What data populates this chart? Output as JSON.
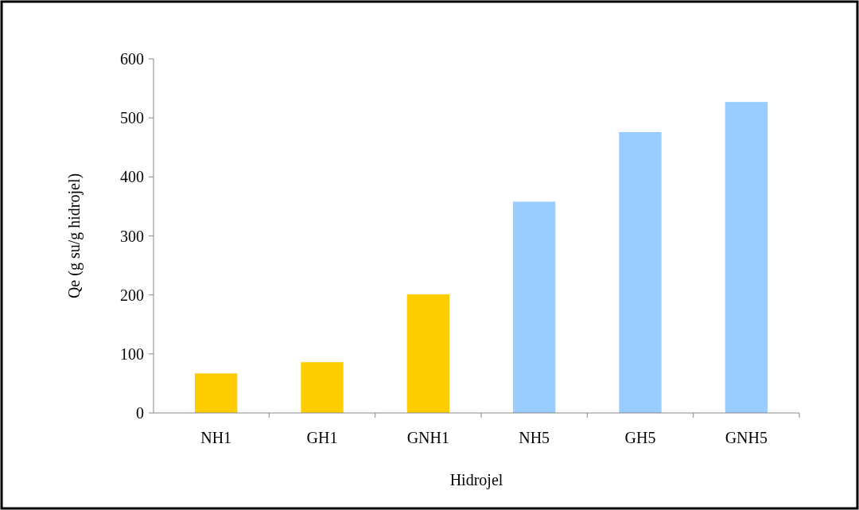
{
  "chart_data": {
    "type": "bar",
    "xlabel": "Hidrojel",
    "ylabel": "Qe (g su/g hidrojel)",
    "categories": [
      "NH1",
      "GH1",
      "GNH1",
      "NH5",
      "GH5",
      "GNH5"
    ],
    "values": [
      67,
      86,
      201,
      358,
      476,
      527
    ],
    "colors": [
      "#ffcc00",
      "#ffcc00",
      "#ffcc00",
      "#99ccff",
      "#99ccff",
      "#99ccff"
    ],
    "ylim": [
      0,
      600
    ],
    "yticks": [
      0,
      100,
      200,
      300,
      400,
      500,
      600
    ],
    "grid": false
  }
}
